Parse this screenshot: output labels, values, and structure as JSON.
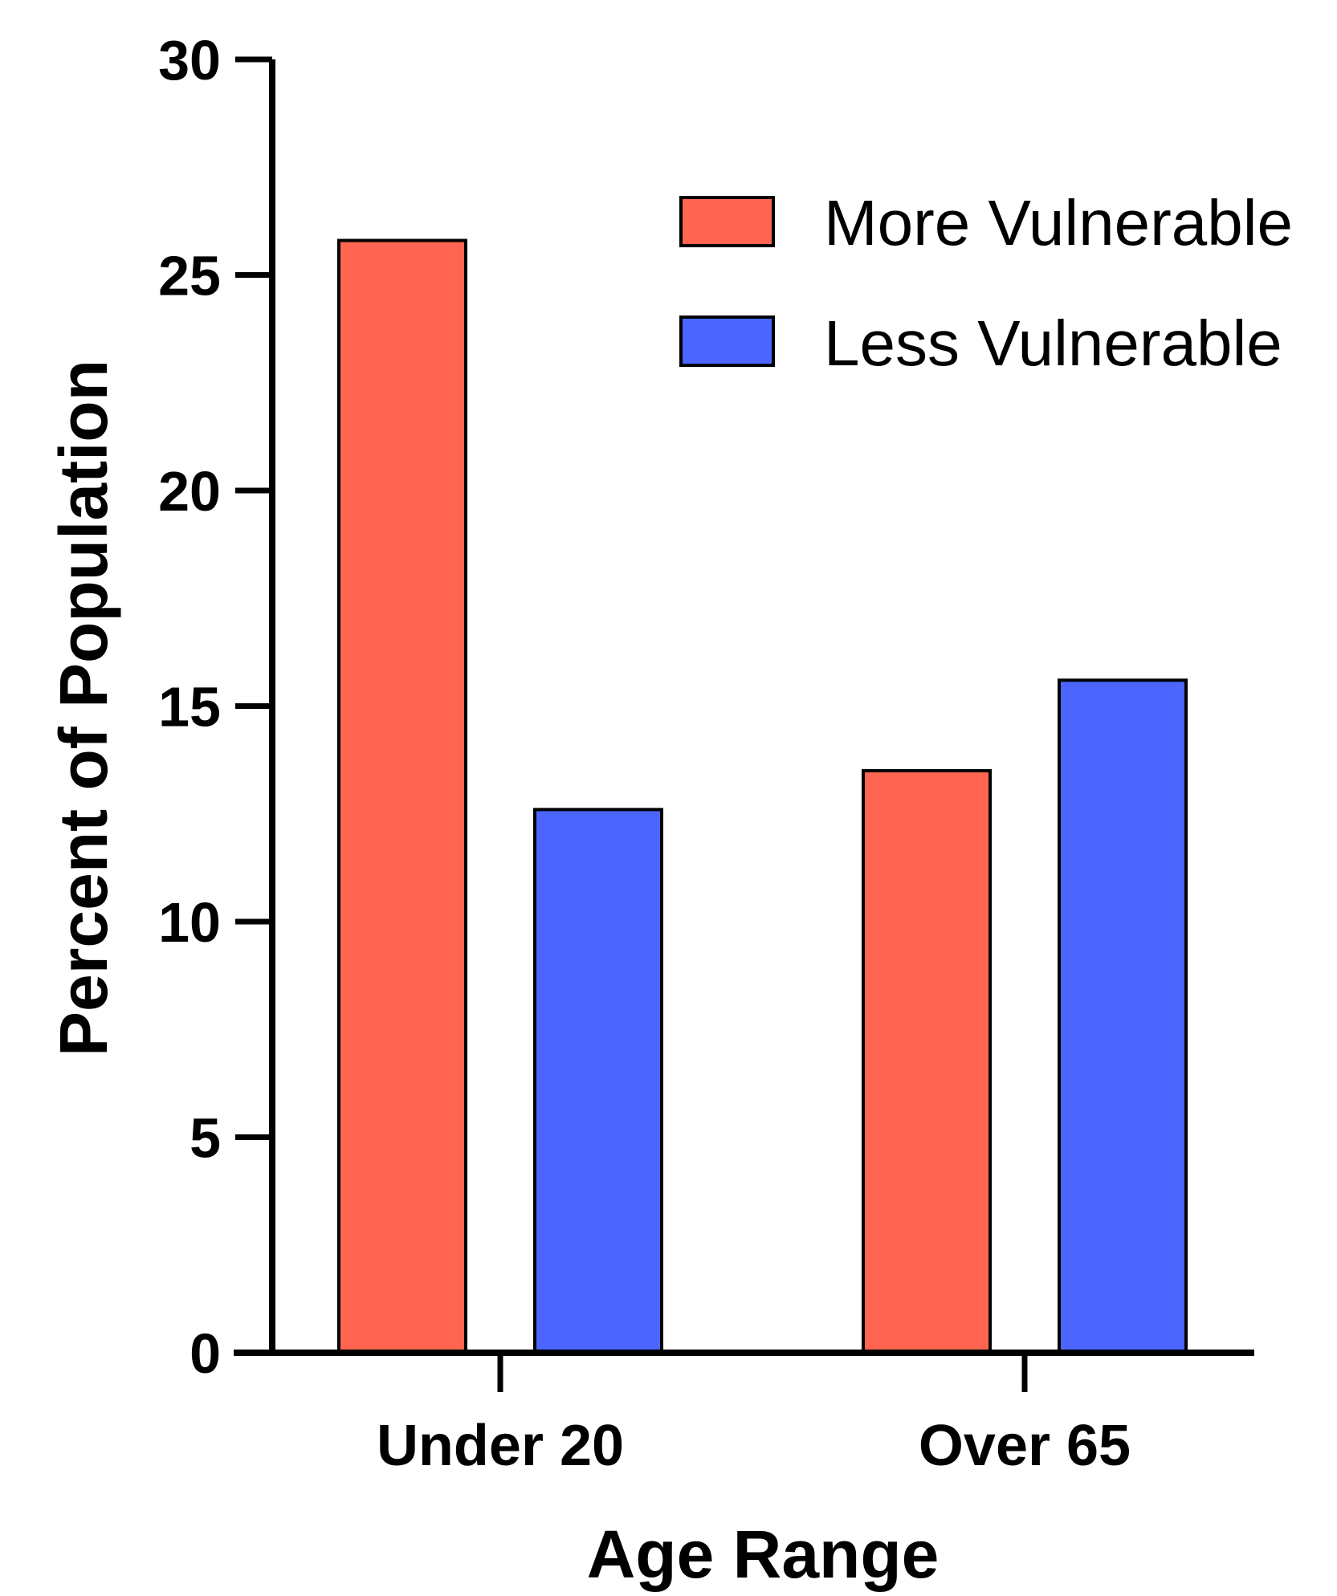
{
  "chart_data": {
    "type": "bar",
    "title": "",
    "xlabel": "Age Range",
    "ylabel": "Percent of Population",
    "categories": [
      "Under 20",
      "Over 65"
    ],
    "series": [
      {
        "name": "More Vulnerable",
        "values": [
          25.8,
          13.5
        ],
        "color": "#ff6550"
      },
      {
        "name": "Less Vulnerable",
        "values": [
          12.6,
          15.6
        ],
        "color": "#4a66ff"
      }
    ],
    "ylim": [
      0,
      30
    ],
    "yticks": [
      "0",
      "5",
      "10",
      "15",
      "20",
      "25",
      "30"
    ],
    "grid": false,
    "legend_position": "top-right"
  }
}
